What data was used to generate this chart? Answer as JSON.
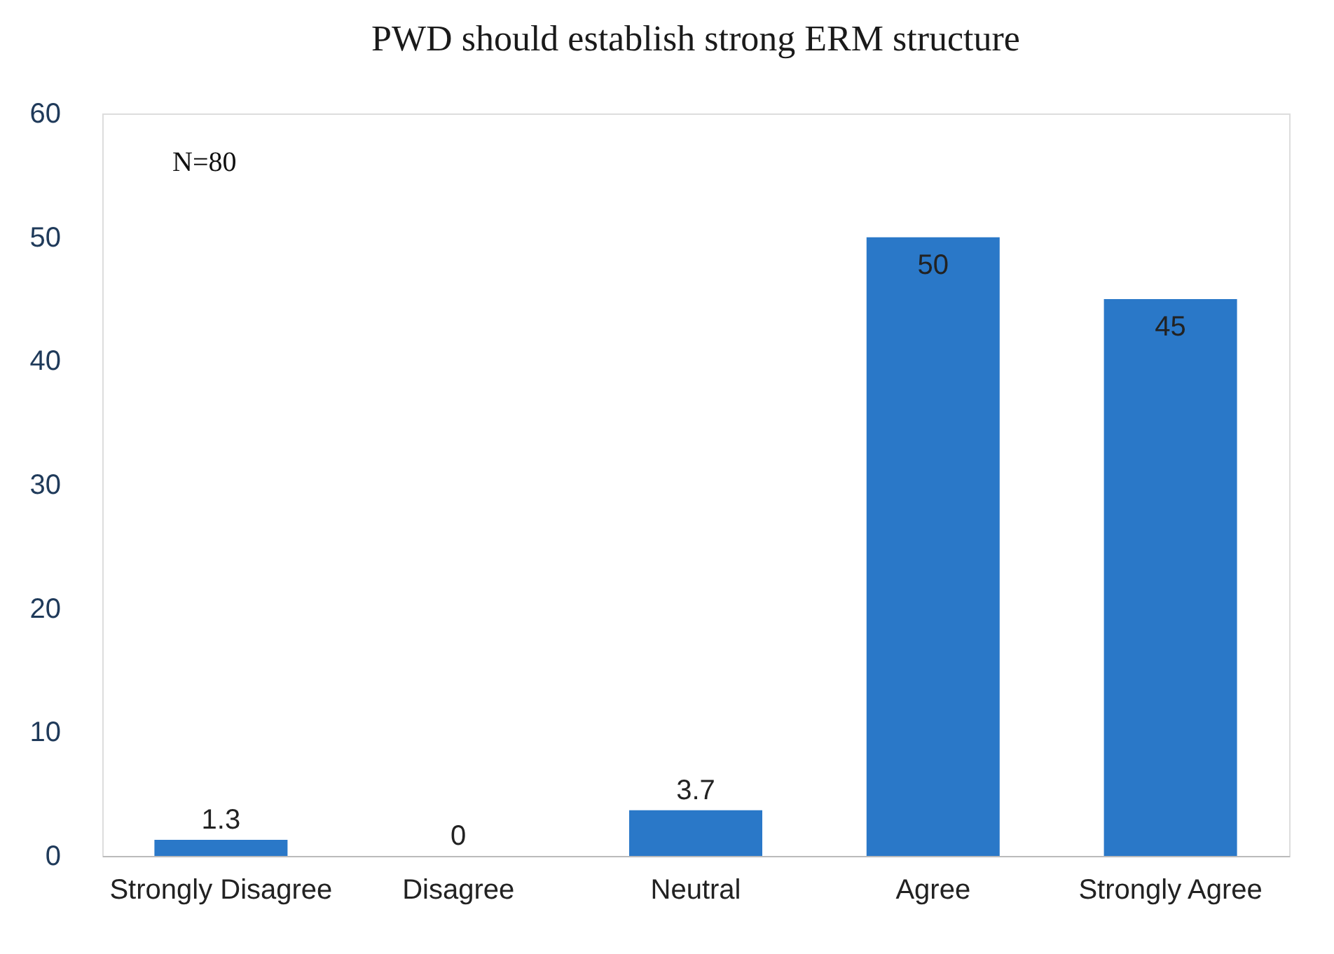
{
  "chart_data": {
    "type": "bar",
    "title": "PWD should establish strong ERM structure",
    "categories": [
      "Strongly Disagree",
      "Disagree",
      "Neutral",
      "Agree",
      "Strongly Agree"
    ],
    "values": [
      1.3,
      0,
      3.7,
      50,
      45
    ],
    "color": "#2a78c8",
    "ylim": [
      0,
      60
    ],
    "yticks": [
      0,
      10,
      20,
      30,
      40,
      50,
      60
    ],
    "grid": false,
    "data_labels": true,
    "annotations": [
      "N=80"
    ]
  }
}
